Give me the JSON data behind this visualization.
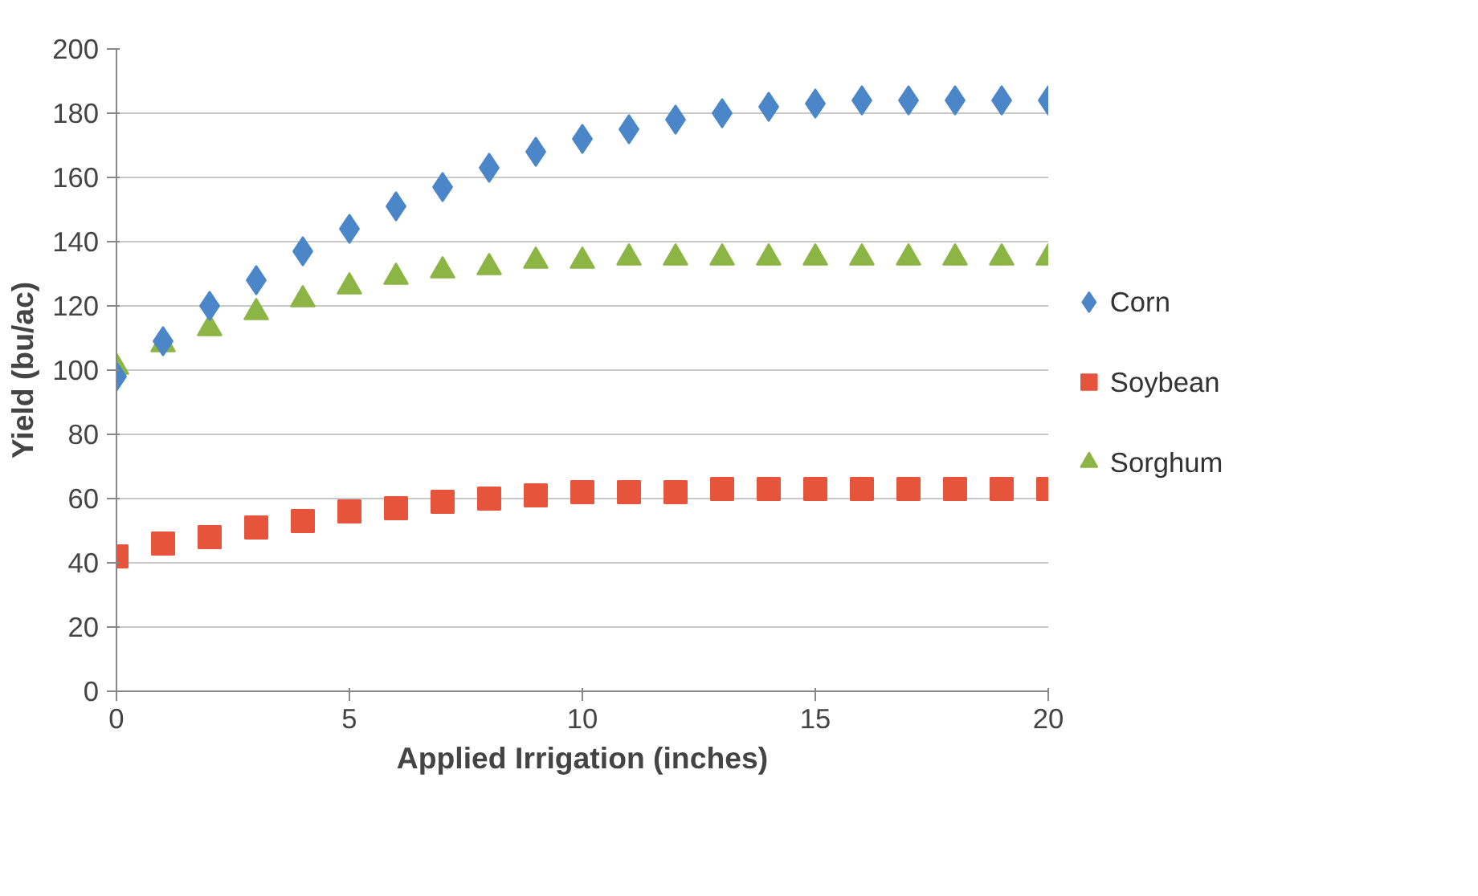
{
  "chart_data": {
    "type": "scatter",
    "xlabel": "Applied Irrigation (inches)",
    "ylabel": "Yield (bu/ac)",
    "x": [
      0,
      1,
      2,
      3,
      4,
      5,
      6,
      7,
      8,
      9,
      10,
      11,
      12,
      13,
      14,
      15,
      16,
      17,
      18,
      19,
      20
    ],
    "xlim": [
      0,
      20
    ],
    "xticks": [
      0,
      5,
      10,
      15,
      20
    ],
    "ylim": [
      0,
      200
    ],
    "yticks": [
      0,
      20,
      40,
      60,
      80,
      100,
      120,
      140,
      160,
      180,
      200
    ],
    "grid": "y",
    "legend": "right",
    "series": [
      {
        "name": "Corn",
        "color": "#4a86c8",
        "marker": "diamond",
        "values": [
          98,
          109,
          120,
          128,
          137,
          144,
          151,
          157,
          163,
          168,
          172,
          175,
          178,
          180,
          182,
          183,
          184,
          184,
          184,
          184,
          184
        ]
      },
      {
        "name": "Soybean",
        "color": "#e5543b",
        "marker": "square",
        "values": [
          42,
          46,
          48,
          51,
          53,
          56,
          57,
          59,
          60,
          61,
          62,
          62,
          62,
          63,
          63,
          63,
          63,
          63,
          63,
          63,
          63
        ]
      },
      {
        "name": "Sorghum",
        "color": "#8db545",
        "marker": "triangle",
        "values": [
          101,
          108,
          113,
          118,
          122,
          126,
          129,
          131,
          132,
          134,
          134,
          135,
          135,
          135,
          135,
          135,
          135,
          135,
          135,
          135,
          135
        ]
      }
    ]
  }
}
